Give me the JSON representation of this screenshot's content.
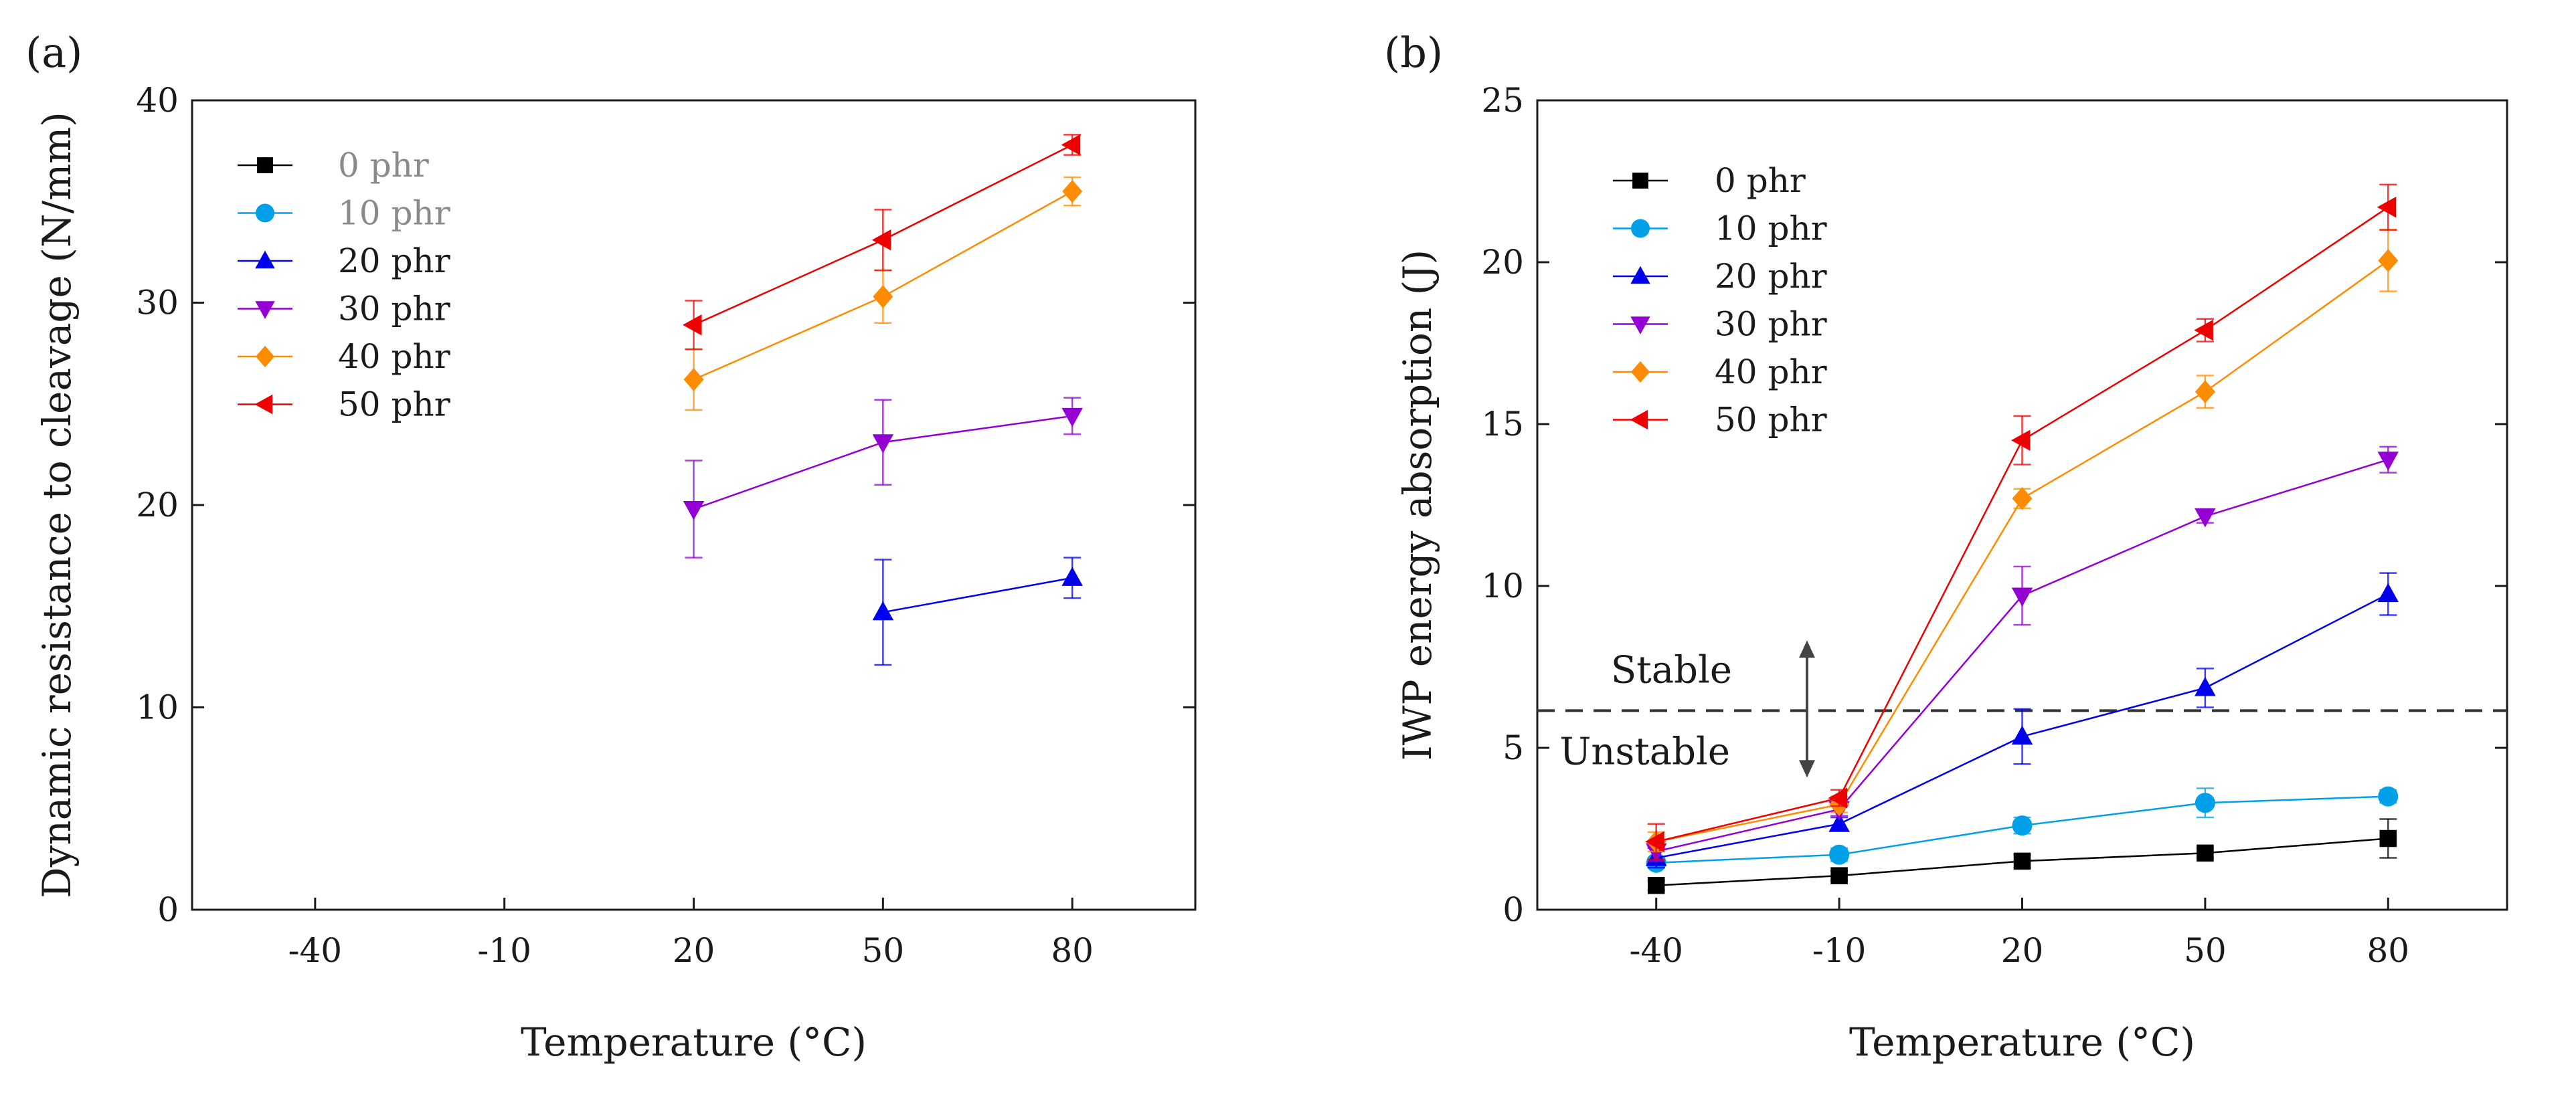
{
  "chart_data": [
    {
      "panel": "(a)",
      "type": "line",
      "title": "",
      "xlabel": "Temperature (°C)",
      "ylabel": "Dynamic resistance to cleavage (N/mm)",
      "x_categories": [
        "-40",
        "-10",
        "20",
        "50",
        "80"
      ],
      "ylim": [
        0,
        40
      ],
      "yticks": [
        "0",
        "10",
        "20",
        "30",
        "40"
      ],
      "legend_position": "top-left",
      "series": [
        {
          "name": "0 phr",
          "color": "#000000",
          "marker": "square",
          "values": [
            null,
            null,
            null,
            null,
            null
          ],
          "errors": [
            null,
            null,
            null,
            null,
            null
          ]
        },
        {
          "name": "10 phr",
          "color": "#00a0e9",
          "marker": "circle",
          "values": [
            null,
            null,
            null,
            null,
            null
          ],
          "errors": [
            null,
            null,
            null,
            null,
            null
          ]
        },
        {
          "name": "20 phr",
          "color": "#0000ee",
          "marker": "triangle-up",
          "values": [
            null,
            null,
            null,
            14.7,
            16.4
          ],
          "errors": [
            null,
            null,
            null,
            2.6,
            1.0
          ]
        },
        {
          "name": "30 phr",
          "color": "#9400d3",
          "marker": "triangle-down",
          "values": [
            null,
            null,
            19.8,
            23.1,
            24.4
          ],
          "errors": [
            null,
            null,
            2.4,
            2.1,
            0.9
          ]
        },
        {
          "name": "40 phr",
          "color": "#ff8c00",
          "marker": "diamond",
          "values": [
            null,
            null,
            26.2,
            30.3,
            35.5
          ],
          "errors": [
            null,
            null,
            1.5,
            1.3,
            0.7
          ]
        },
        {
          "name": "50 phr",
          "color": "#ee0000",
          "marker": "triangle-left",
          "values": [
            null,
            null,
            28.9,
            33.1,
            37.8
          ],
          "errors": [
            null,
            null,
            1.2,
            1.5,
            0.5
          ]
        }
      ],
      "legend_grey_labels": [
        "0 phr",
        "10 phr"
      ]
    },
    {
      "panel": "(b)",
      "type": "line",
      "title": "",
      "xlabel": "Temperature (°C)",
      "ylabel": "IWP energy absorption (J)",
      "x_categories": [
        "-40",
        "-10",
        "20",
        "50",
        "80"
      ],
      "ylim": [
        0,
        25
      ],
      "yticks": [
        "0",
        "5",
        "10",
        "15",
        "20",
        "25"
      ],
      "legend_position": "top-left",
      "series": [
        {
          "name": "0 phr",
          "color": "#000000",
          "marker": "square",
          "values": [
            0.75,
            1.05,
            1.5,
            1.75,
            2.2
          ],
          "errors": [
            0.15,
            0.15,
            0.2,
            0.15,
            0.6
          ]
        },
        {
          "name": "10 phr",
          "color": "#00a0e9",
          "marker": "circle",
          "values": [
            1.45,
            1.7,
            2.6,
            3.3,
            3.5
          ],
          "errors": [
            0.15,
            0.2,
            0.25,
            0.45,
            0.2
          ]
        },
        {
          "name": "20 phr",
          "color": "#0000ee",
          "marker": "triangle-up",
          "values": [
            1.6,
            2.65,
            5.35,
            6.85,
            9.75
          ],
          "errors": [
            0.3,
            0.2,
            0.85,
            0.6,
            0.65
          ]
        },
        {
          "name": "30 phr",
          "color": "#9400d3",
          "marker": "triangle-down",
          "values": [
            1.8,
            3.1,
            9.7,
            12.15,
            13.9
          ],
          "errors": [
            0.3,
            0.2,
            0.9,
            0.2,
            0.4
          ]
        },
        {
          "name": "40 phr",
          "color": "#ff8c00",
          "marker": "diamond",
          "values": [
            2.1,
            3.25,
            12.7,
            16.0,
            20.05
          ],
          "errors": [
            0.3,
            0.25,
            0.3,
            0.5,
            0.95
          ]
        },
        {
          "name": "50 phr",
          "color": "#ee0000",
          "marker": "triangle-left",
          "values": [
            2.1,
            3.45,
            14.5,
            17.9,
            21.7
          ],
          "errors": [
            0.55,
            0.25,
            0.75,
            0.35,
            0.7
          ]
        }
      ],
      "threshold": {
        "value": 6.15,
        "label_above": "Stable",
        "label_below": "Unstable"
      }
    }
  ]
}
